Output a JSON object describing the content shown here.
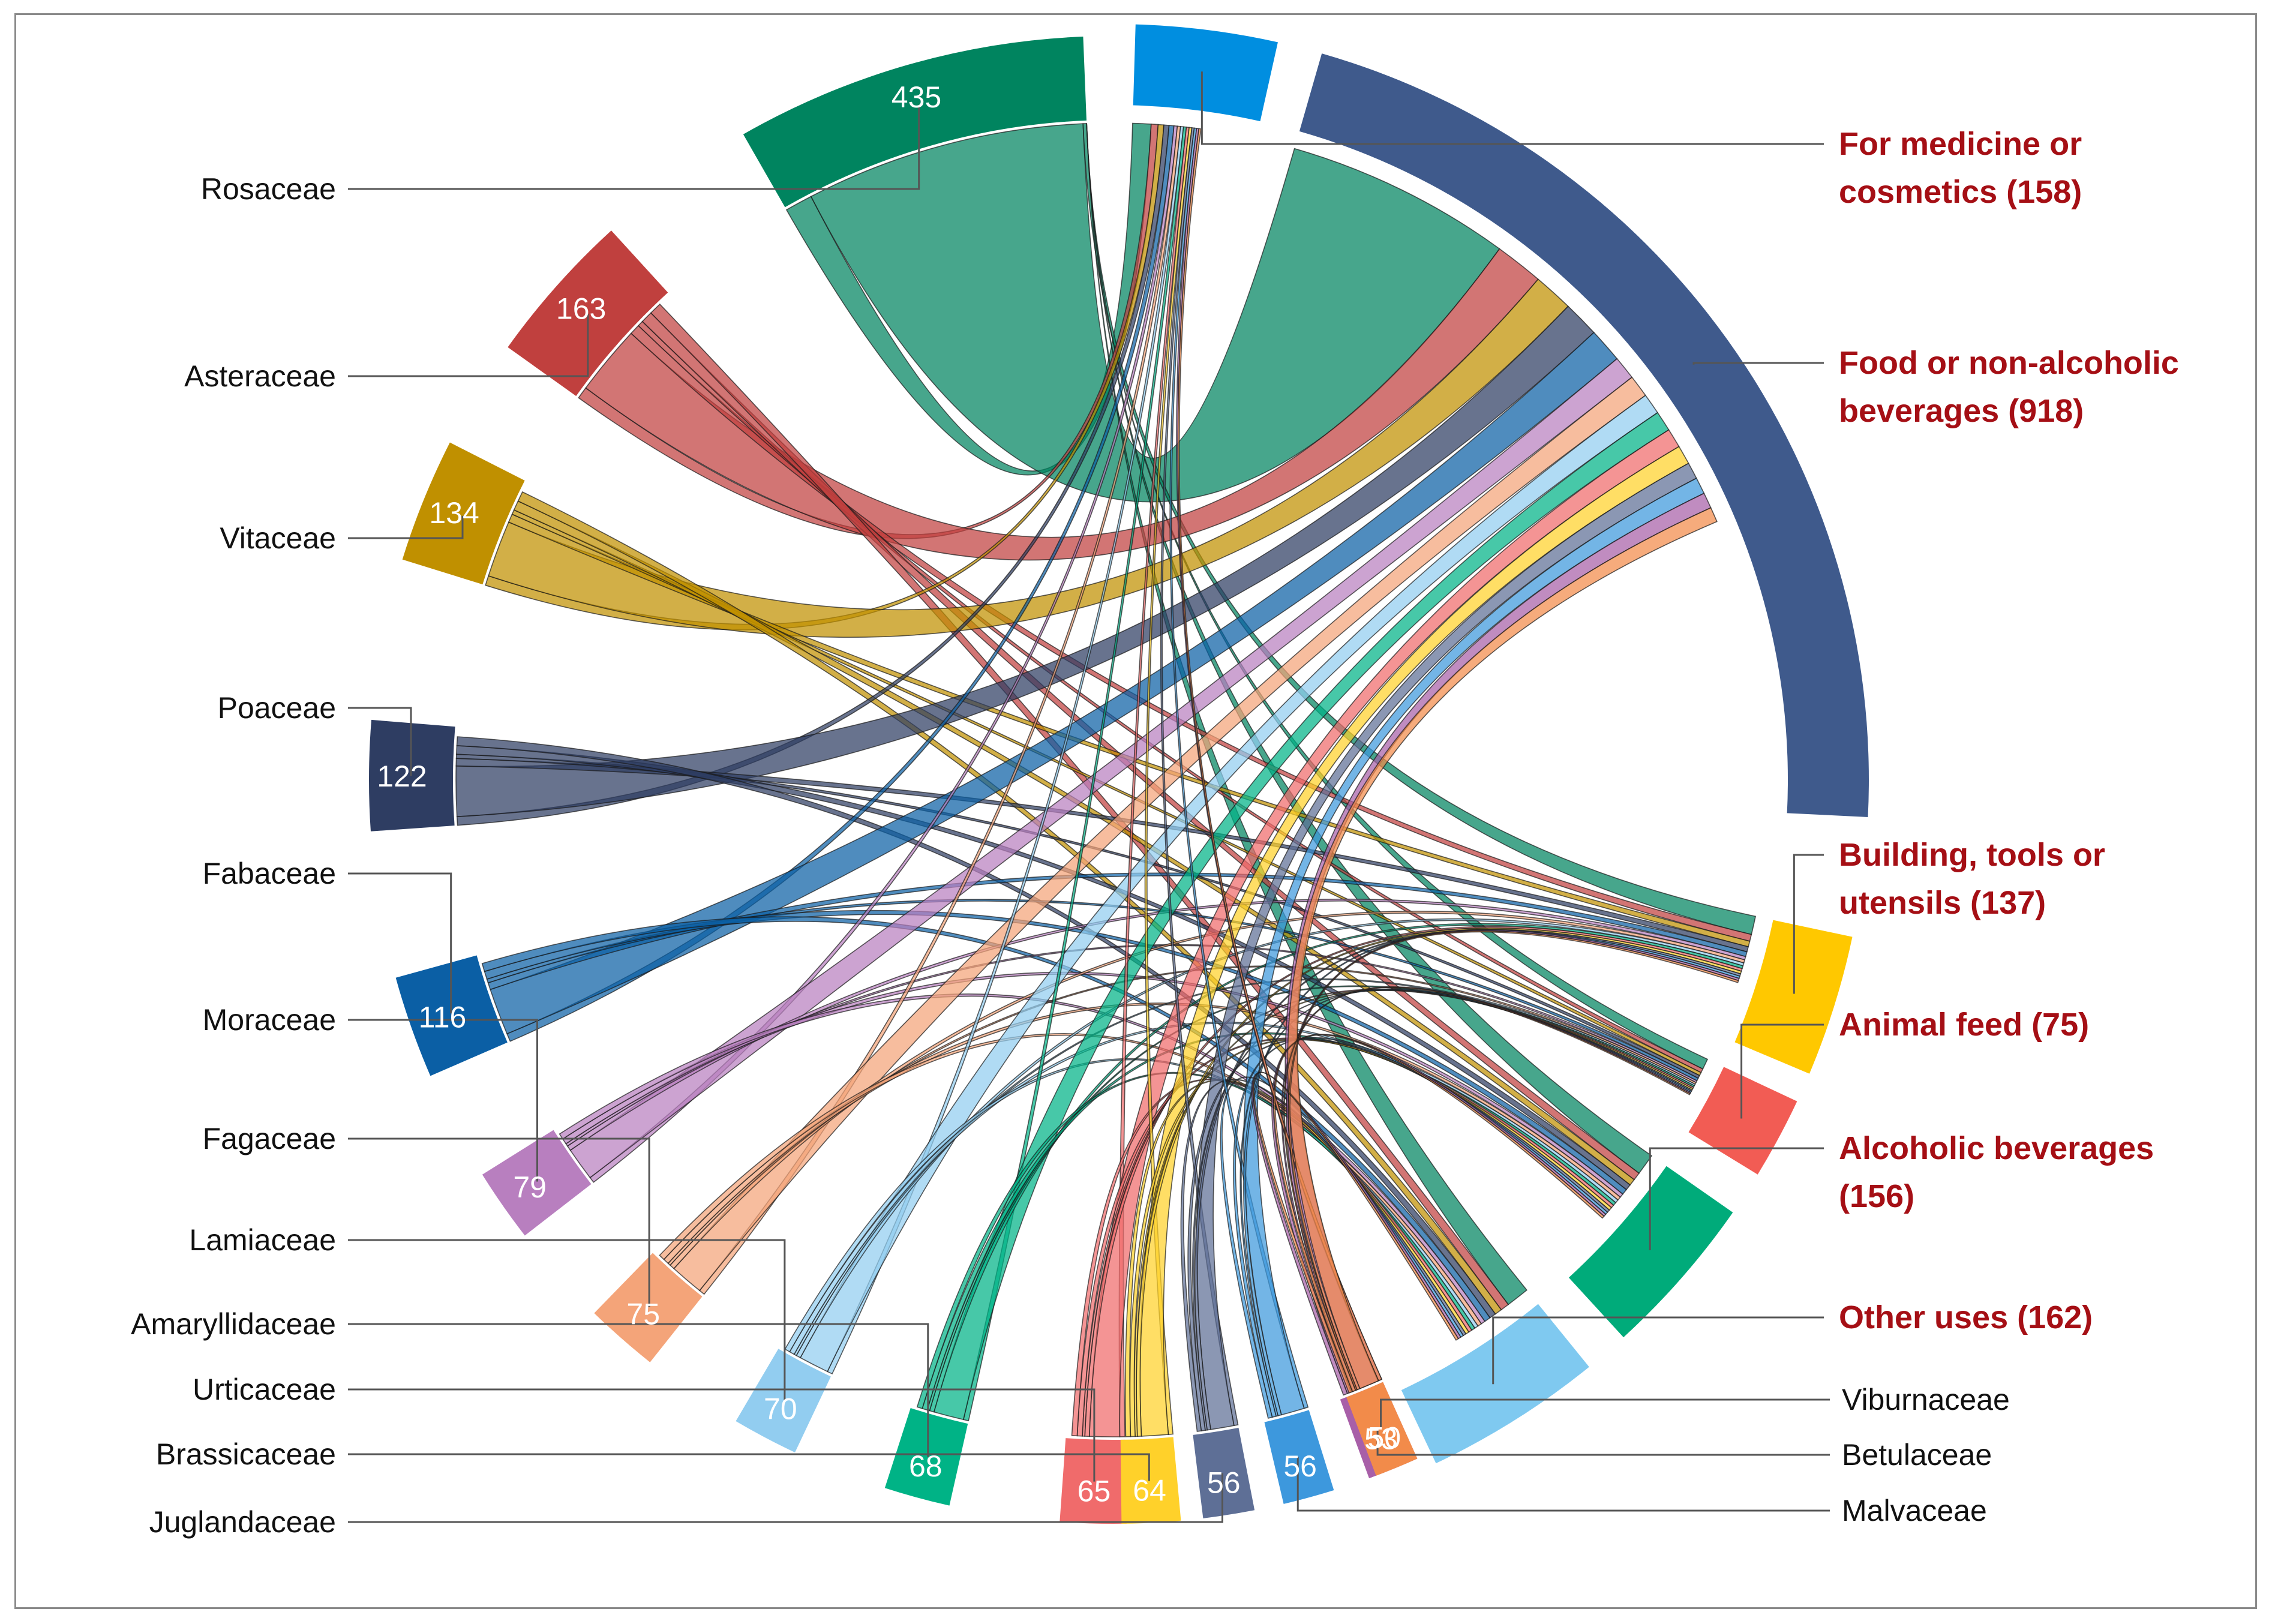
{
  "chart_data": {
    "type": "chord",
    "title": "",
    "families": [
      {
        "name": "Rosaceae",
        "value": 435,
        "color": "#00845f"
      },
      {
        "name": "Asteraceae",
        "value": 163,
        "color": "#c0403e"
      },
      {
        "name": "Vitaceae",
        "value": 134,
        "color": "#c09000"
      },
      {
        "name": "Poaceae",
        "value": 122,
        "color": "#2e3d62"
      },
      {
        "name": "Fabaceae",
        "value": 116,
        "color": "#0b5fa5"
      },
      {
        "name": "Moraceae",
        "value": 79,
        "color": "#b87fbf"
      },
      {
        "name": "Fagaceae",
        "value": 75,
        "color": "#f4a479"
      },
      {
        "name": "Lamiaceae",
        "value": 70,
        "color": "#92cdf0"
      },
      {
        "name": "Amaryllidaceae",
        "value": 68,
        "color": "#00b386"
      },
      {
        "name": "Urticaceae",
        "value": 65,
        "color": "#f06b6b"
      },
      {
        "name": "Brassicaceae",
        "value": 64,
        "color": "#ffd12a"
      },
      {
        "name": "Juglandaceae",
        "value": 56,
        "color": "#5e6f96"
      },
      {
        "name": "Malvaceae",
        "value": 56,
        "color": "#3d98dd"
      },
      {
        "name": "Betulaceae",
        "value": 53,
        "color": "#a85fa8"
      },
      {
        "name": "Viburnaceae",
        "value": 50,
        "color": "#f28b4a"
      }
    ],
    "uses": [
      {
        "name_line1": "For medicine or",
        "name_line2": "cosmetics (158)",
        "value": 158,
        "color": "#008ee0"
      },
      {
        "name_line1": "Food or non-alcoholic",
        "name_line2": "beverages (918)",
        "value": 918,
        "color": "#3f5a8c"
      },
      {
        "name_line1": "Building, tools or",
        "name_line2": "utensils (137)",
        "value": 137,
        "color": "#ffc800"
      },
      {
        "name_line1": "Animal feed (75)",
        "name_line2": "",
        "value": 75,
        "color": "#f25c54"
      },
      {
        "name_line1": "Alcoholic beverages",
        "name_line2": "(156)",
        "value": 156,
        "color": "#00ab7a"
      },
      {
        "name_line1": "Other uses (162)",
        "name_line2": "",
        "value": 162,
        "color": "#7fc9f0"
      }
    ]
  }
}
